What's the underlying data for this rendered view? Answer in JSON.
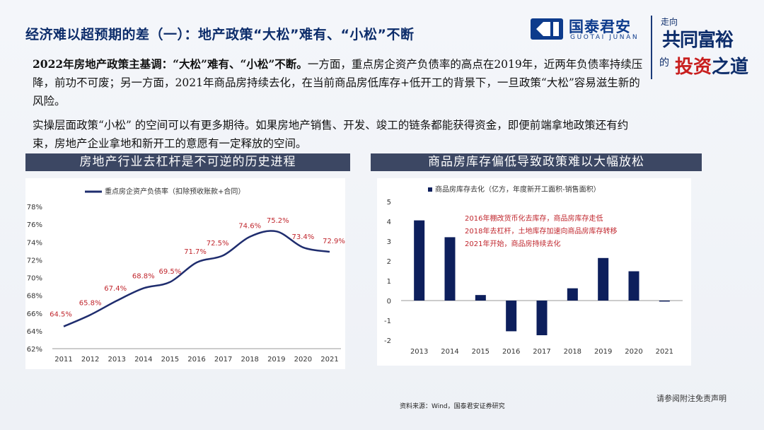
{
  "title": "经济难以超预期的差（一）：地产政策“大松”难有、“小松”不断",
  "logo": {
    "cn": "国泰君安",
    "en": "GUOTAI JUNAN"
  },
  "brand": {
    "line1": "走向",
    "line2": "共同富裕",
    "line3": "的",
    "line4a": "投资",
    "line4b": "之道"
  },
  "para1": {
    "lead": "2022年房地产政策主基调：“大松”难有、“小松”不断。",
    "body": "一方面，重点房企资产负债率的高点在2019年，近两年负债率持续压降，前功不可废；另一方面，2021年商品房持续去化，在当前商品房低库存+低开工的背景下，一旦政策“大松”容易滋生新的风险。"
  },
  "para2": "实操层面政策“小松” 的空间可以有更多期待。如果房地产销售、开发、竣工的链条都能获得资金，即便前端拿地政策还有约束，房地产企业拿地和新开工的意愿有一定释放的空间。",
  "section1": "房地产行业去杠杆是不可逆的历史进程",
  "section2": "商品房库存偏低导致政策难以大幅放松",
  "chart_data": [
    {
      "type": "line",
      "title": "",
      "legend": "重点房企资产负债率（扣除预收账款+合同）",
      "x": [
        "2011",
        "2012",
        "2013",
        "2014",
        "2015",
        "2016",
        "2017",
        "2018",
        "2019",
        "2020",
        "2021"
      ],
      "series": [
        {
          "name": "重点房企资产负债率（扣除预收账款+合同）",
          "values": [
            64.5,
            65.8,
            67.4,
            68.8,
            69.5,
            71.7,
            72.5,
            74.6,
            75.2,
            73.4,
            72.9
          ]
        }
      ],
      "data_labels": [
        "64.5%",
        "65.8%",
        "67.4%",
        "68.8%",
        "69.5%",
        "71.7%",
        "72.5%",
        "74.6%",
        "75.2%",
        "73.4%",
        "72.9%"
      ],
      "yticks": [
        "62%",
        "64%",
        "66%",
        "68%",
        "70%",
        "72%",
        "74%",
        "76%",
        "78%"
      ],
      "ylim": [
        62,
        78
      ],
      "color": "#1f2d6e",
      "label_color": "#c0262d"
    },
    {
      "type": "bar",
      "legend": "商品房库存去化（亿方，年度新开工面积-销售面积）",
      "categories": [
        "2013",
        "2014",
        "2015",
        "2016",
        "2017",
        "2018",
        "2019",
        "2020",
        "2021"
      ],
      "values": [
        4.05,
        3.2,
        0.28,
        -1.55,
        -1.75,
        0.62,
        2.15,
        1.48,
        -0.05
      ],
      "yticks": [
        "-2",
        "-1",
        "0",
        "1",
        "2",
        "3",
        "4",
        "5"
      ],
      "ylim": [
        -2,
        5
      ],
      "color": "#0d1f5c",
      "annotations": [
        "2016年棚改货币化去库存，商品房库存走低",
        "2018年去杠杆，土地库存加速向商品房库存转移",
        "2021年开始，商品房持续去化"
      ],
      "annotation_color": "#c0262d"
    }
  ],
  "footnote": "资料来源：Wind，国泰君安证券研究",
  "disclaimer": "请参阅附注免责声明"
}
